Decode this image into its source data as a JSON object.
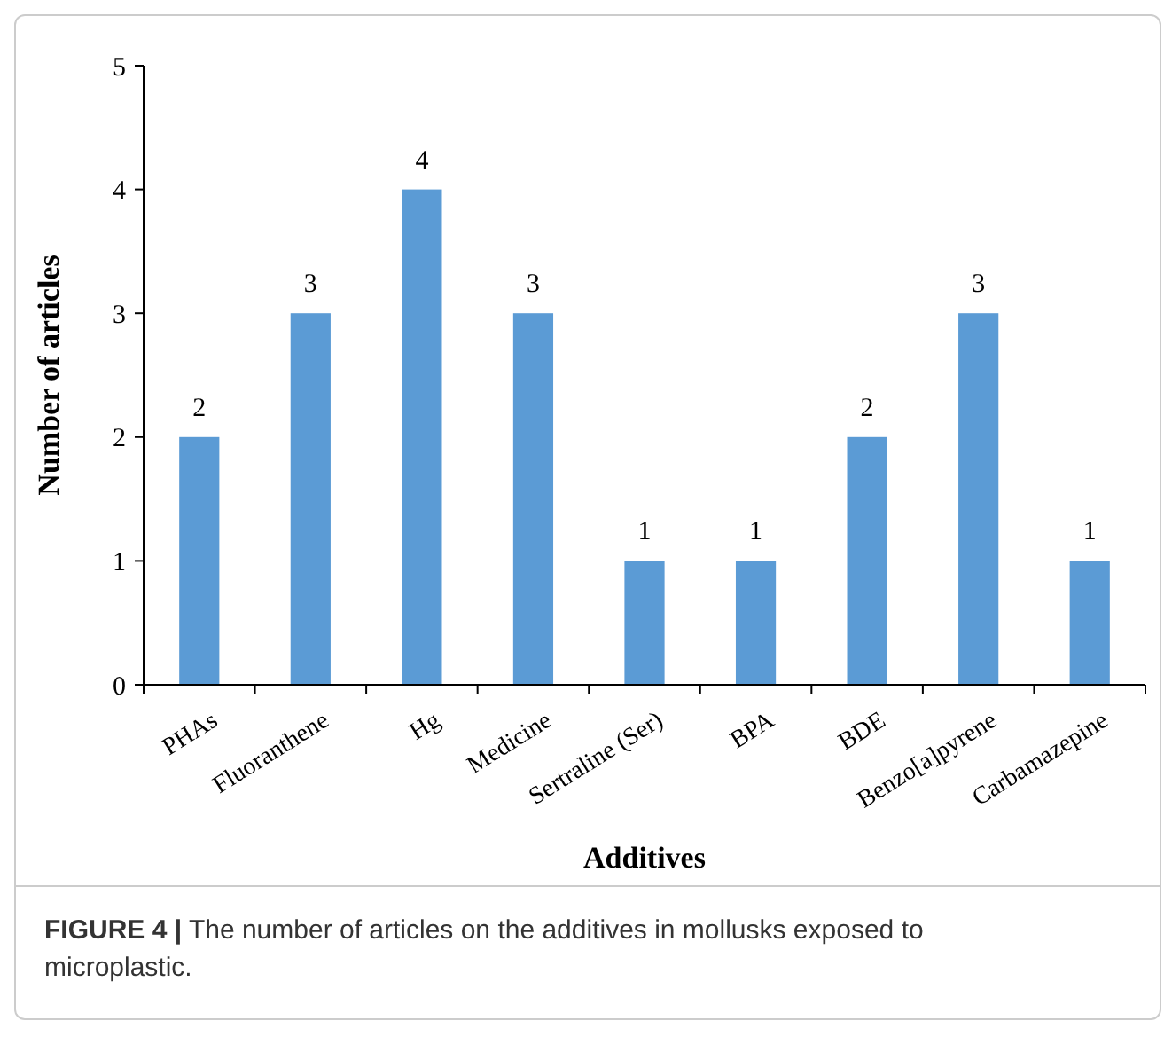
{
  "chart_data": {
    "type": "bar",
    "xlabel": "Additives",
    "ylabel": "Number of articles",
    "categories": [
      "PHAs",
      "Fluoranthene",
      "Hg",
      "Medicine",
      "Sertraline (Ser)",
      "BPA",
      "BDE",
      "Benzo[a]pyrene",
      "Carbamazepine"
    ],
    "values": [
      2,
      3,
      4,
      3,
      1,
      1,
      2,
      3,
      1
    ],
    "color": "#5b9bd5",
    "data_labels": true,
    "ylim": [
      0,
      5
    ],
    "yticks": [
      0,
      1,
      2,
      3,
      4,
      5
    ],
    "grid": false,
    "annotations": [
      "FIGURE 4 | The number of articles on the additives in mollusks exposed to microplastic."
    ]
  }
}
